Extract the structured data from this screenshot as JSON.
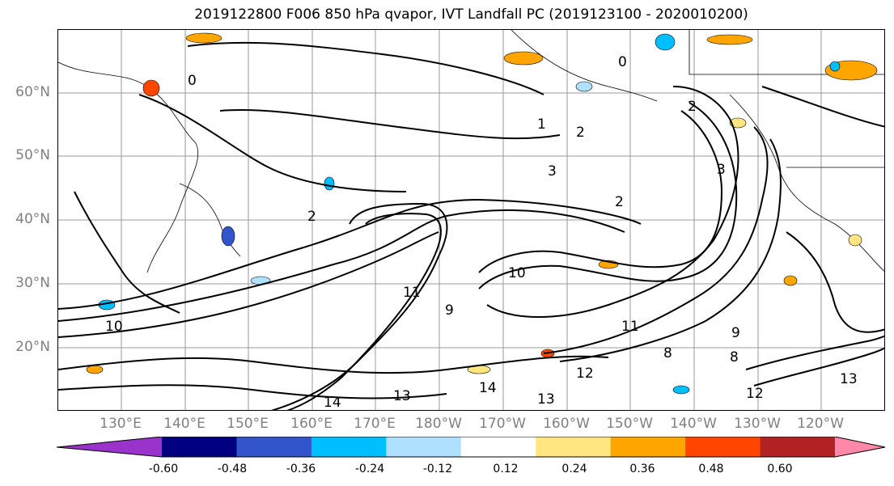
{
  "title": "2019122800 F006 850 hPa qvapor, IVT Landfall PC (2019123100 - 2020010200)",
  "lat_labels": [
    "60°N",
    "50°N",
    "40°N",
    "30°N",
    "20°N"
  ],
  "lon_labels": [
    "130°E",
    "140°E",
    "150°E",
    "160°E",
    "170°E",
    "180°W",
    "170°W",
    "160°W",
    "150°W",
    "140°W",
    "130°W",
    "120°W"
  ],
  "colorbar": {
    "colors": [
      "#9933cc",
      "#000080",
      "#3355cc",
      "#00bfff",
      "#b0e0ff",
      "#ffffff",
      "#ffe680",
      "#ffa500",
      "#ff4500",
      "#b22222",
      "#ff88aa"
    ],
    "tick_labels": [
      "-0.60",
      "-0.48",
      "-0.36",
      "-0.24",
      "-0.12",
      "0.12",
      "0.24",
      "0.36",
      "0.48",
      "0.60"
    ]
  },
  "contour_labels": [
    "0",
    "0",
    "1",
    "2",
    "2",
    "3",
    "3",
    "2",
    "2",
    "10",
    "11",
    "10",
    "9",
    "8",
    "14",
    "13",
    "12",
    "13",
    "9",
    "11",
    "12",
    "13",
    "14",
    "8"
  ],
  "colors": {
    "axis_label": "#808080",
    "gridline": "#999999",
    "contour": "#000000"
  }
}
